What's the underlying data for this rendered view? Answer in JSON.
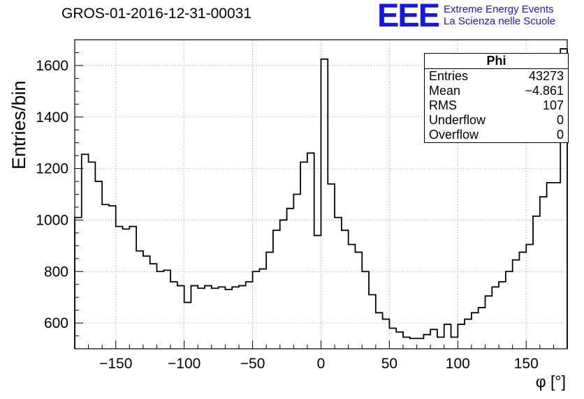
{
  "title": "GROS-01-2016-12-31-00031",
  "logo": {
    "acronym": "EEE",
    "line1": "Extreme Energy Events",
    "line2": "La Scienza nelle Scuole",
    "color": "#1515ee"
  },
  "stats": {
    "header": "Phi",
    "rows": [
      {
        "label": "Entries",
        "value": "43273"
      },
      {
        "label": "Mean",
        "value": "−4.861"
      },
      {
        "label": "RMS",
        "value": "107"
      },
      {
        "label": "Underflow",
        "value": "0"
      },
      {
        "label": "Overflow",
        "value": "0"
      }
    ]
  },
  "chart_data": {
    "type": "bar",
    "subtype": "step-histogram",
    "title": "GROS-01-2016-12-31-00031",
    "xlabel": "φ [°]",
    "ylabel": "Entries/bin",
    "xlim": [
      -180,
      180
    ],
    "ylim": [
      500,
      1700
    ],
    "x_ticks": [
      -150,
      -100,
      -50,
      0,
      50,
      100,
      150
    ],
    "y_ticks": [
      600,
      800,
      1000,
      1200,
      1400,
      1600
    ],
    "grid": true,
    "bin_start": -180,
    "bin_width": 5,
    "values": [
      1010,
      1255,
      1225,
      1150,
      1060,
      1055,
      975,
      965,
      975,
      880,
      860,
      830,
      800,
      805,
      760,
      745,
      680,
      745,
      735,
      745,
      735,
      740,
      730,
      740,
      745,
      760,
      800,
      810,
      875,
      960,
      1000,
      1045,
      1100,
      1225,
      1260,
      940,
      1625,
      1140,
      1010,
      960,
      905,
      875,
      800,
      710,
      640,
      615,
      580,
      565,
      545,
      540,
      540,
      555,
      575,
      545,
      595,
      545,
      595,
      615,
      640,
      660,
      705,
      740,
      760,
      800,
      845,
      875,
      905,
      1015,
      1090,
      1145,
      1145,
      1665
    ],
    "stats_box": {
      "entries": 43273,
      "mean": -4.861,
      "rms": 107,
      "underflow": 0,
      "overflow": 0
    }
  }
}
